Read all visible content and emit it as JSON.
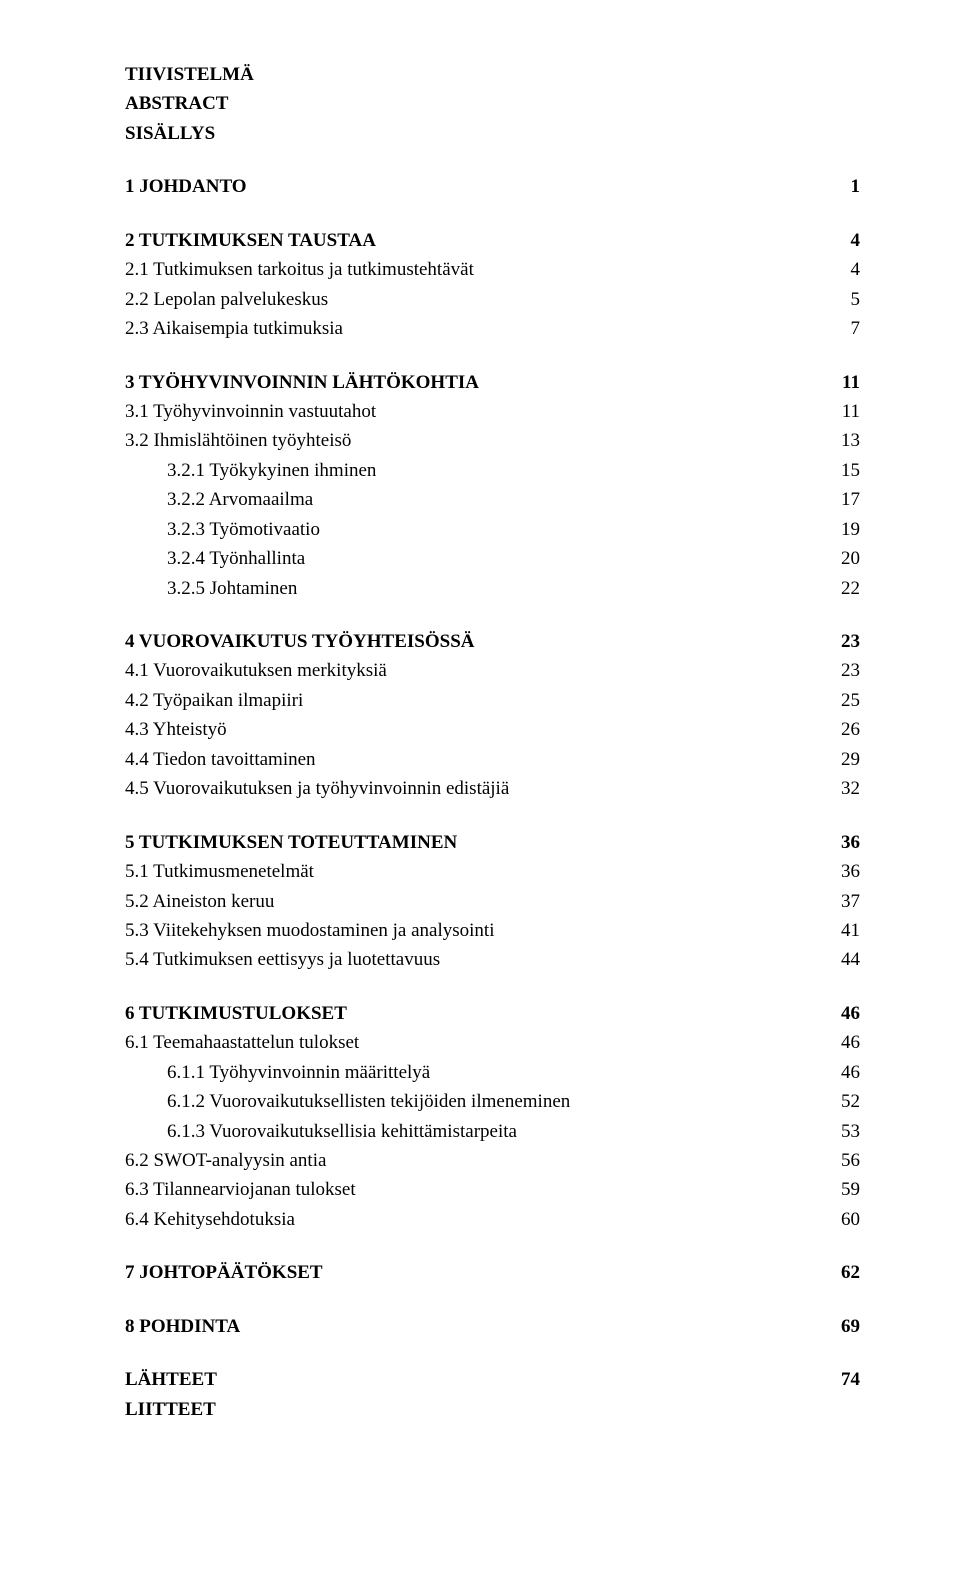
{
  "preface": [
    "TIIVISTELMÄ",
    "ABSTRACT",
    "SISÄLLYS"
  ],
  "sections": [
    {
      "rows": [
        {
          "label": "1 JOHDANTO",
          "page": "1",
          "bold": true
        }
      ]
    },
    {
      "rows": [
        {
          "label": "2 TUTKIMUKSEN TAUSTAA",
          "page": "4",
          "bold": true
        },
        {
          "label": "2.1 Tutkimuksen tarkoitus ja tutkimustehtävät",
          "page": "4"
        },
        {
          "label": "2.2 Lepolan palvelukeskus",
          "page": "5"
        },
        {
          "label": "2.3 Aikaisempia tutkimuksia",
          "page": "7"
        }
      ]
    },
    {
      "rows": [
        {
          "label": "3 TYÖHYVINVOINNIN LÄHTÖKOHTIA",
          "page": "11",
          "bold": true
        },
        {
          "label": "3.1 Työhyvinvoinnin vastuutahot",
          "page": "11"
        },
        {
          "label": "3.2 Ihmislähtöinen työyhteisö",
          "page": "13"
        },
        {
          "label": "3.2.1 Työkykyinen ihminen",
          "page": "15",
          "indent": 1
        },
        {
          "label": "3.2.2 Arvomaailma",
          "page": "17",
          "indent": 1
        },
        {
          "label": "3.2.3 Työmotivaatio",
          "page": "19",
          "indent": 1
        },
        {
          "label": "3.2.4 Työnhallinta",
          "page": "20",
          "indent": 1
        },
        {
          "label": "3.2.5 Johtaminen",
          "page": "22",
          "indent": 1
        }
      ]
    },
    {
      "rows": [
        {
          "label": "4 VUOROVAIKUTUS TYÖYHTEISÖSSÄ",
          "page": "23",
          "bold": true
        },
        {
          "label": "4.1 Vuorovaikutuksen merkityksiä",
          "page": "23"
        },
        {
          "label": "4.2 Työpaikan ilmapiiri",
          "page": "25"
        },
        {
          "label": "4.3 Yhteistyö",
          "page": "26"
        },
        {
          "label": "4.4 Tiedon tavoittaminen",
          "page": "29"
        },
        {
          "label": "4.5 Vuorovaikutuksen ja työhyvinvoinnin edistäjiä",
          "page": "32"
        }
      ]
    },
    {
      "rows": [
        {
          "label": "5 TUTKIMUKSEN TOTEUTTAMINEN",
          "page": "36",
          "bold": true
        },
        {
          "label": "5.1 Tutkimusmenetelmät",
          "page": "36"
        },
        {
          "label": "5.2 Aineiston keruu",
          "page": "37"
        },
        {
          "label": "5.3 Viitekehyksen muodostaminen ja analysointi",
          "page": "41"
        },
        {
          "label": "5.4 Tutkimuksen eettisyys ja luotettavuus",
          "page": "44"
        }
      ]
    },
    {
      "rows": [
        {
          "label": "6 TUTKIMUSTULOKSET",
          "page": "46",
          "bold": true
        },
        {
          "label": "6.1 Teemahaastattelun tulokset",
          "page": "46"
        },
        {
          "label": "6.1.1 Työhyvinvoinnin määrittelyä",
          "page": "46",
          "indent": 1
        },
        {
          "label": "6.1.2 Vuorovaikutuksellisten tekijöiden ilmeneminen",
          "page": "52",
          "indent": 1
        },
        {
          "label": "6.1.3 Vuorovaikutuksellisia kehittämistarpeita",
          "page": "53",
          "indent": 1
        },
        {
          "label": "6.2 SWOT-analyysin antia",
          "page": "56"
        },
        {
          "label": "6.3 Tilannearviojanan tulokset",
          "page": "59"
        },
        {
          "label": "6.4 Kehitysehdotuksia",
          "page": "60"
        }
      ]
    },
    {
      "rows": [
        {
          "label": "7 JOHTOPÄÄTÖKSET",
          "page": "62",
          "bold": true
        }
      ]
    },
    {
      "rows": [
        {
          "label": "8 POHDINTA",
          "page": "69",
          "bold": true
        }
      ]
    }
  ],
  "sources": [
    {
      "label": "LÄHTEET",
      "page": "74"
    },
    {
      "label": "LIITTEET",
      "page": ""
    }
  ]
}
